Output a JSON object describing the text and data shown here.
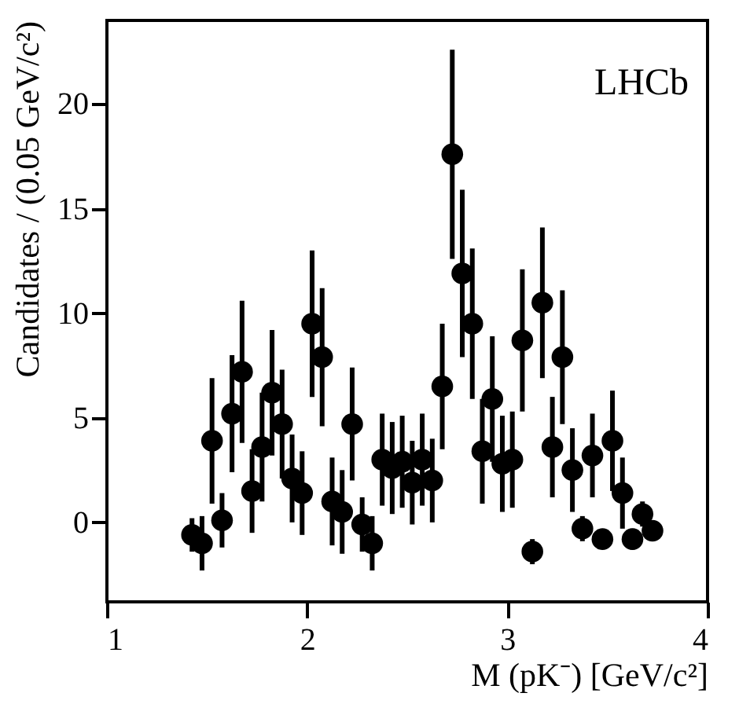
{
  "chart_data": {
    "type": "scatter",
    "xlabel": "M (pK⁻) [GeV/c²]",
    "ylabel": "Candidates / (0.05 GeV/c²)",
    "annotations": [
      "LHCb"
    ],
    "x": [
      1.425,
      1.475,
      1.525,
      1.575,
      1.625,
      1.675,
      1.725,
      1.775,
      1.825,
      1.875,
      1.925,
      1.975,
      2.025,
      2.075,
      2.125,
      2.175,
      2.225,
      2.275,
      2.325,
      2.375,
      2.425,
      2.475,
      2.525,
      2.575,
      2.625,
      2.675,
      2.725,
      2.775,
      2.825,
      2.875,
      2.925,
      2.975,
      3.025,
      3.075,
      3.125,
      3.175,
      3.225,
      3.275,
      3.325,
      3.375,
      3.425,
      3.475,
      3.525,
      3.575,
      3.625,
      3.675,
      3.725
    ],
    "series": [
      {
        "color": "#000000",
        "values": [
          -0.6,
          -1.0,
          3.9,
          0.1,
          5.2,
          7.2,
          1.5,
          3.6,
          6.2,
          4.7,
          2.1,
          1.4,
          9.5,
          7.9,
          1.0,
          0.5,
          4.7,
          -0.1,
          -1.0,
          3.0,
          2.6,
          2.9,
          1.9,
          3.0,
          2.0,
          6.5,
          17.6,
          11.9,
          9.5,
          3.4,
          5.9,
          2.8,
          3.0,
          8.7,
          -1.4,
          10.5,
          3.6,
          7.9,
          2.5,
          -0.3,
          3.2,
          -0.8,
          3.9,
          1.4,
          -0.8,
          0.4,
          -0.4
        ],
        "errors": [
          0.8,
          1.3,
          3.0,
          1.3,
          2.8,
          3.4,
          2.0,
          2.6,
          3.0,
          2.6,
          2.1,
          2.0,
          3.5,
          3.3,
          2.1,
          2.0,
          2.7,
          1.3,
          1.3,
          2.2,
          2.2,
          2.2,
          2.0,
          2.2,
          2.0,
          3.0,
          5.0,
          4.0,
          3.6,
          2.5,
          3.0,
          2.3,
          2.3,
          3.4,
          0.6,
          3.6,
          2.4,
          3.2,
          2.0,
          0.6,
          2.0,
          0.4,
          2.4,
          1.7,
          0.5,
          0.6,
          0.4
        ]
      }
    ],
    "xlim": [
      1,
      4
    ],
    "ylim": [
      -3.8,
      24
    ],
    "xticks": [
      1,
      2,
      3,
      4
    ],
    "yticks": [
      0,
      5,
      10,
      15,
      20
    ],
    "marker": "circle"
  }
}
